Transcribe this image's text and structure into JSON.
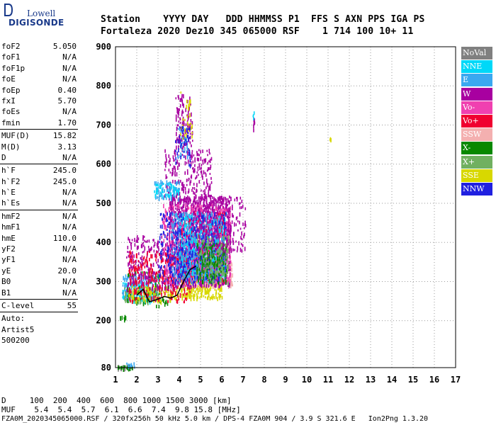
{
  "logo": {
    "top": "Lowell",
    "bottom": "DIGISONDE"
  },
  "header": {
    "line1": "Station    YYYY DAY   DDD HHMMSS P1  FFS S AXN PPS IGA PS",
    "line2": "Fortaleza 2020 Dez10 345 065000 RSF    1 714 100 10+ 11"
  },
  "params": [
    {
      "label": "foF2",
      "value": "5.050"
    },
    {
      "label": "foF1",
      "value": "N/A"
    },
    {
      "label": "foF1p",
      "value": "N/A"
    },
    {
      "label": "foE",
      "value": "N/A"
    },
    {
      "label": "foEp",
      "value": "0.40"
    },
    {
      "label": "fxI",
      "value": "5.70"
    },
    {
      "label": "foEs",
      "value": "N/A"
    },
    {
      "label": "fmin",
      "value": "1.70"
    },
    {
      "sep": true
    },
    {
      "label": "MUF(D)",
      "value": "15.82"
    },
    {
      "label": "M(D)",
      "value": "3.13"
    },
    {
      "label": "D",
      "value": "N/A"
    },
    {
      "sep": true
    },
    {
      "label": "h`F",
      "value": "245.0"
    },
    {
      "label": "h`F2",
      "value": "245.0"
    },
    {
      "label": "h`E",
      "value": "N/A"
    },
    {
      "label": "h`Es",
      "value": "N/A"
    },
    {
      "sep": true
    },
    {
      "label": "hmF2",
      "value": "N/A"
    },
    {
      "label": "hmF1",
      "value": "N/A"
    },
    {
      "label": "hmE",
      "value": "110.0"
    },
    {
      "label": "yF2",
      "value": "N/A"
    },
    {
      "label": "yF1",
      "value": "N/A"
    },
    {
      "label": "yE",
      "value": "20.0"
    },
    {
      "label": "B0",
      "value": "N/A"
    },
    {
      "label": "B1",
      "value": "N/A"
    },
    {
      "sep": true
    },
    {
      "label": "C-level",
      "value": "55"
    },
    {
      "sep": true
    },
    {
      "label": "Auto:",
      "value": ""
    },
    {
      "label": "Artist5",
      "value": ""
    },
    {
      "label": "500200",
      "value": ""
    }
  ],
  "legend": [
    {
      "label": "NoVal",
      "color": "#808080"
    },
    {
      "label": "NNE",
      "color": "#00d8f8"
    },
    {
      "label": "E",
      "color": "#3aa8f0"
    },
    {
      "label": "W",
      "color": "#a800a0"
    },
    {
      "label": "Vo-",
      "color": "#f040b0"
    },
    {
      "label": "Vo+",
      "color": "#f00030"
    },
    {
      "label": "SSW",
      "color": "#f4b0b0"
    },
    {
      "label": "X-",
      "color": "#088800"
    },
    {
      "label": "X+",
      "color": "#70b060"
    },
    {
      "label": "SSE",
      "color": "#d8d800"
    },
    {
      "label": "NNW",
      "color": "#2020e0"
    }
  ],
  "footer": {
    "d_line": "D     100  200  400  600  800 1000 1500 3000 [km]",
    "muf_line": "MUF    5.4  5.4  5.7  6.1  6.6  7.4  9.8 15.8 [MHz]",
    "file_line": "FZA0M_2020345065000.RSF / 320fx256h 50 kHz 5.0 km / DPS-4 FZA0M 904 / 3.9 S 321.6 E   Ion2Png 1.3.20"
  },
  "chart_data": {
    "type": "scatter",
    "x_range": [
      1,
      17
    ],
    "y_range": [
      80,
      900
    ],
    "x_ticks": [
      "1",
      "2",
      "3",
      "4",
      "5",
      "6",
      "7",
      "8",
      "9",
      "10",
      "11",
      "12",
      "13",
      "14",
      "15",
      "16",
      "17"
    ],
    "y_ticks": [
      "900",
      "800",
      "700",
      "600",
      "500",
      "400",
      "300",
      "200",
      "80"
    ],
    "grid": true,
    "legend_position": "right",
    "trace": [
      [
        2.0,
        265
      ],
      [
        2.3,
        280
      ],
      [
        2.6,
        248
      ],
      [
        3.0,
        255
      ],
      [
        3.3,
        262
      ],
      [
        3.6,
        258
      ],
      [
        3.9,
        265
      ],
      [
        4.2,
        300
      ],
      [
        4.5,
        330
      ],
      [
        4.8,
        340
      ]
    ],
    "clusters": [
      {
        "series": "NoVal",
        "x": [
          1.1,
          1.9
        ],
        "y": [
          80,
          88
        ],
        "n": 30
      },
      {
        "series": "X-",
        "x": [
          1.1,
          1.8
        ],
        "y": [
          80,
          86
        ],
        "n": 20
      },
      {
        "series": "E",
        "x": [
          1.5,
          2.0
        ],
        "y": [
          84,
          94
        ],
        "n": 10
      },
      {
        "series": "X-",
        "x": [
          1.2,
          1.6
        ],
        "y": [
          205,
          215
        ],
        "n": 8
      },
      {
        "series": "NNE",
        "x": [
          1.3,
          2.8
        ],
        "y": [
          250,
          300
        ],
        "n": 120
      },
      {
        "series": "E",
        "x": [
          1.3,
          3.0
        ],
        "y": [
          255,
          320
        ],
        "n": 130
      },
      {
        "series": "X+",
        "x": [
          1.4,
          3.2
        ],
        "y": [
          250,
          290
        ],
        "n": 90
      },
      {
        "series": "X-",
        "x": [
          1.5,
          3.6
        ],
        "y": [
          240,
          330
        ],
        "n": 90
      },
      {
        "series": "SSE",
        "x": [
          1.6,
          4.0
        ],
        "y": [
          250,
          290
        ],
        "n": 100
      },
      {
        "series": "SSE",
        "x": [
          4.0,
          6.0
        ],
        "y": [
          260,
          330
        ],
        "n": 300
      },
      {
        "series": "SSW",
        "x": [
          4.2,
          6.5
        ],
        "y": [
          290,
          350
        ],
        "n": 250
      },
      {
        "series": "W",
        "x": [
          1.5,
          3.8
        ],
        "y": [
          280,
          420
        ],
        "n": 250
      },
      {
        "series": "W",
        "x": [
          3.5,
          6.4
        ],
        "y": [
          290,
          520
        ],
        "n": 1300
      },
      {
        "series": "Vo-",
        "x": [
          3.2,
          6.4
        ],
        "y": [
          300,
          500
        ],
        "n": 700
      },
      {
        "series": "Vo+",
        "x": [
          1.6,
          4.5
        ],
        "y": [
          250,
          380
        ],
        "n": 250
      },
      {
        "series": "Vo+",
        "x": [
          4.0,
          6.2
        ],
        "y": [
          300,
          480
        ],
        "n": 200
      },
      {
        "series": "E",
        "x": [
          3.6,
          6.2
        ],
        "y": [
          300,
          480
        ],
        "n": 500
      },
      {
        "series": "NNE",
        "x": [
          4.0,
          6.2
        ],
        "y": [
          310,
          470
        ],
        "n": 250
      },
      {
        "series": "NNW",
        "x": [
          3.0,
          6.2
        ],
        "y": [
          300,
          480
        ],
        "n": 350
      },
      {
        "series": "X+",
        "x": [
          4.8,
          6.3
        ],
        "y": [
          300,
          420
        ],
        "n": 200
      },
      {
        "series": "X-",
        "x": [
          4.8,
          6.2
        ],
        "y": [
          300,
          400
        ],
        "n": 120
      },
      {
        "series": "W",
        "x": [
          4.6,
          7.1
        ],
        "y": [
          380,
          520
        ],
        "n": 200
      },
      {
        "series": "W",
        "x": [
          3.3,
          5.5
        ],
        "y": [
          520,
          640
        ],
        "n": 200
      },
      {
        "series": "E",
        "x": [
          2.8,
          4.0
        ],
        "y": [
          515,
          560
        ],
        "n": 80
      },
      {
        "series": "NNE",
        "x": [
          2.8,
          4.0
        ],
        "y": [
          520,
          555
        ],
        "n": 40
      },
      {
        "series": "W",
        "x": [
          3.8,
          4.6
        ],
        "y": [
          640,
          780
        ],
        "n": 120
      },
      {
        "series": "SSE",
        "x": [
          4.0,
          4.6
        ],
        "y": [
          660,
          800
        ],
        "n": 30
      },
      {
        "series": "E",
        "x": [
          3.9,
          4.4
        ],
        "y": [
          620,
          700
        ],
        "n": 30
      },
      {
        "series": "NNW",
        "x": [
          3.8,
          4.5
        ],
        "y": [
          600,
          700
        ],
        "n": 40
      },
      {
        "series": "W",
        "x": [
          7.45,
          7.52
        ],
        "y": [
          690,
          720
        ],
        "n": 8
      },
      {
        "series": "NNE",
        "x": [
          7.45,
          7.52
        ],
        "y": [
          720,
          735
        ],
        "n": 4
      },
      {
        "series": "SSE",
        "x": [
          11.05,
          11.12
        ],
        "y": [
          665,
          678
        ],
        "n": 5
      }
    ]
  }
}
